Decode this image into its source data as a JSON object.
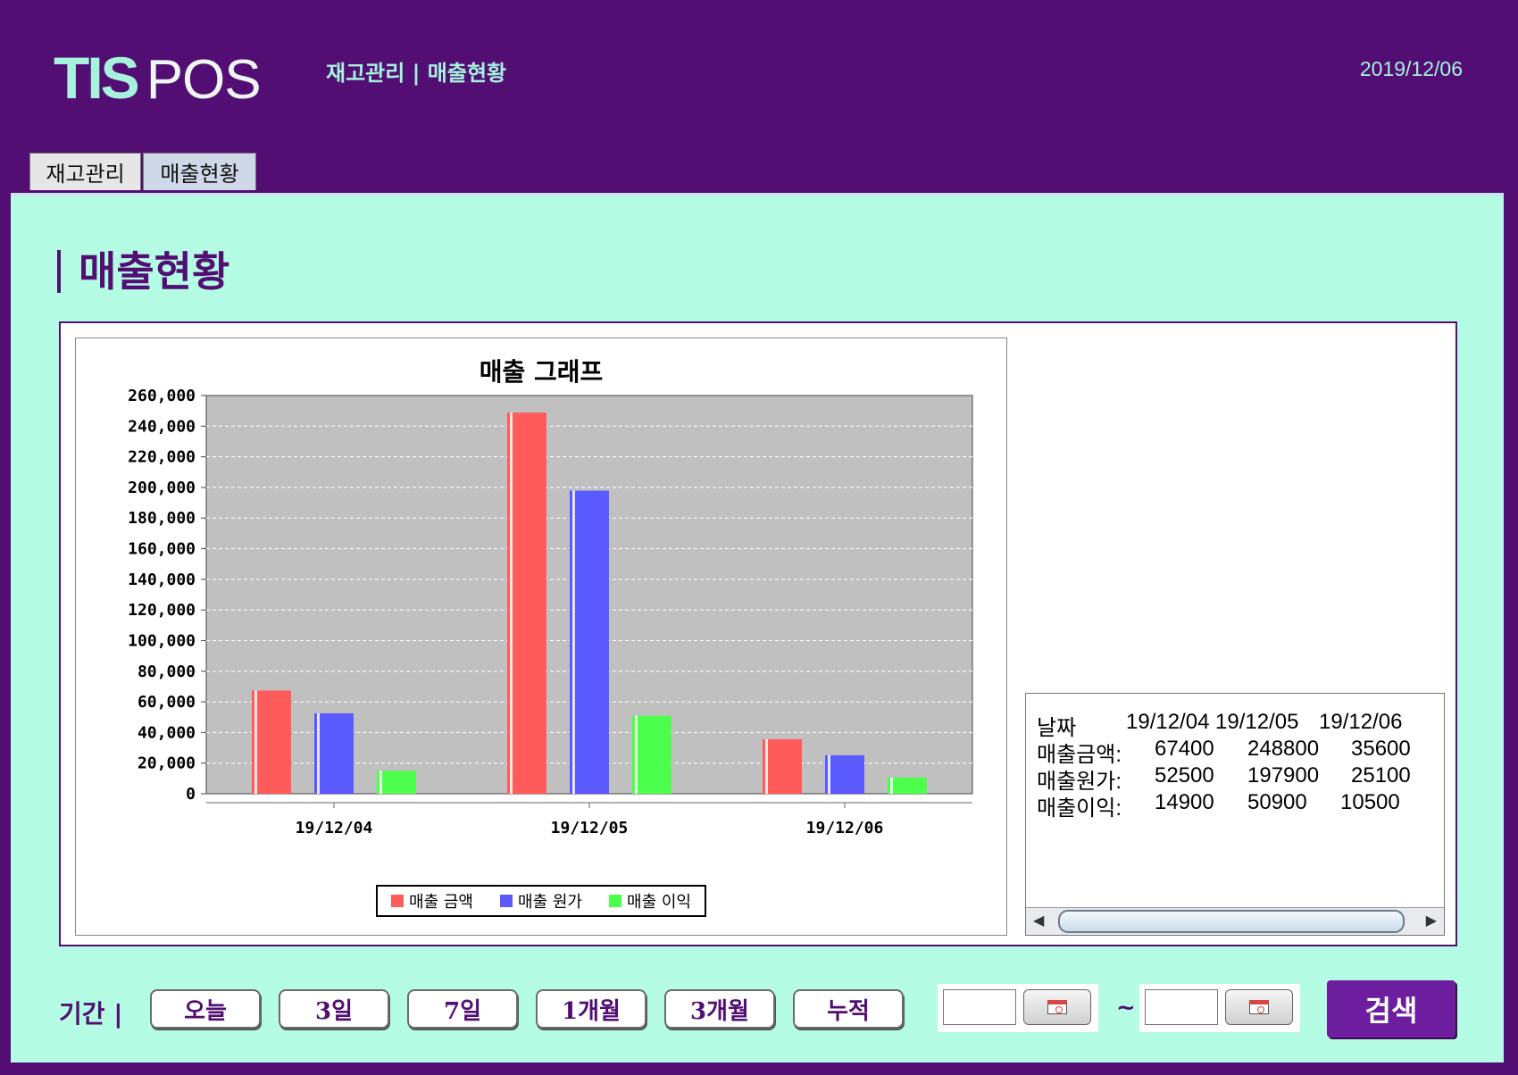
{
  "header": {
    "logo_tis": "TIS",
    "logo_pos": "POS",
    "breadcrumb": "재고관리 | 매출현황",
    "date": "2019/12/06"
  },
  "tabs": [
    {
      "label": "재고관리",
      "active": false
    },
    {
      "label": "매출현황",
      "active": true
    }
  ],
  "page": {
    "title": "매출현황"
  },
  "chart_data": {
    "type": "bar",
    "title": "매출 그래프",
    "categories": [
      "19/12/04",
      "19/12/05",
      "19/12/06"
    ],
    "series": [
      {
        "name": "매출 금액",
        "color": "#ff5b5b",
        "values": [
          67400,
          248800,
          35600
        ]
      },
      {
        "name": "매출 원가",
        "color": "#5a5aff",
        "values": [
          52500,
          197900,
          25100
        ]
      },
      {
        "name": "매출 이익",
        "color": "#4cff4c",
        "values": [
          14900,
          50900,
          10500
        ]
      }
    ],
    "ylim": [
      0,
      260000
    ],
    "yticks": [
      "0",
      "20,000",
      "40,000",
      "60,000",
      "80,000",
      "100,000",
      "120,000",
      "140,000",
      "160,000",
      "180,000",
      "200,000",
      "220,000",
      "240,000",
      "260,000"
    ],
    "grid": true,
    "legend_position": "bottom",
    "plot_background": "#c0c0c0"
  },
  "table": {
    "header": [
      "날짜",
      "19/12/04",
      "19/12/05",
      "19/12/06"
    ],
    "rows": [
      [
        "매출금액:",
        "67400",
        "248800",
        "35600"
      ],
      [
        "매출원가:",
        "52500",
        "197900",
        "25100"
      ],
      [
        "매출이익:",
        "14900",
        "50900",
        "10500"
      ]
    ]
  },
  "footer": {
    "period_label": "기간 |",
    "buttons": [
      "오늘",
      "3일",
      "7일",
      "1개월",
      "3개월",
      "누적"
    ],
    "start_date": "",
    "end_date": "",
    "calendar_icon": "calendar-icon",
    "tilde": "~",
    "search_label": "검색"
  },
  "colors": {
    "header_bg": "#520e73",
    "content_bg": "#b4fce4",
    "accent": "#a6f2dd",
    "search_button": "#6c1e9f"
  }
}
